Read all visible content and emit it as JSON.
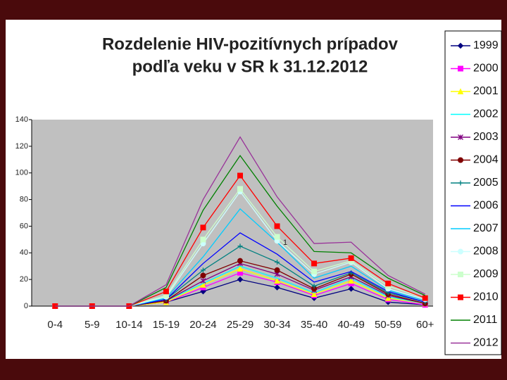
{
  "chart_data": {
    "type": "line",
    "title": [
      "Rozdelenie HIV-pozitívnych prípadov",
      "podľa veku v SR k 31.12.2012"
    ],
    "annotation": "1",
    "categories": [
      "0-4",
      "5-9",
      "10-14",
      "15-19",
      "20-24",
      "25-29",
      "30-34",
      "35-40",
      "40-49",
      "50-59",
      "60+"
    ],
    "ylim": [
      0,
      140
    ],
    "yticks": [
      0,
      20,
      40,
      60,
      80,
      100,
      120,
      140
    ],
    "grid": false,
    "legend": "right",
    "series": [
      {
        "name": "1999",
        "color": "#000080",
        "marker": "diamond",
        "values": [
          0,
          0,
          0,
          3,
          11,
          20,
          14,
          6,
          13,
          3,
          1
        ]
      },
      {
        "name": "2000",
        "color": "#ff00ff",
        "marker": "square",
        "values": [
          0,
          0,
          0,
          3,
          14,
          25,
          18,
          8,
          17,
          5,
          1
        ]
      },
      {
        "name": "2001",
        "color": "#ffff00",
        "marker": "triangle",
        "values": [
          0,
          0,
          0,
          3,
          16,
          28,
          19,
          9,
          19,
          6,
          2
        ]
      },
      {
        "name": "2002",
        "color": "#00ffff",
        "marker": "none",
        "values": [
          0,
          0,
          0,
          4,
          17,
          30,
          21,
          10,
          21,
          7,
          2
        ]
      },
      {
        "name": "2003",
        "color": "#800080",
        "marker": "star",
        "values": [
          0,
          0,
          0,
          4,
          19,
          32,
          24,
          12,
          22,
          8,
          2
        ]
      },
      {
        "name": "2004",
        "color": "#800000",
        "marker": "circle",
        "values": [
          0,
          0,
          0,
          4,
          23,
          34,
          27,
          13,
          24,
          9,
          2
        ]
      },
      {
        "name": "2005",
        "color": "#008080",
        "marker": "plus",
        "values": [
          0,
          0,
          0,
          5,
          27,
          45,
          33,
          15,
          25,
          10,
          3
        ]
      },
      {
        "name": "2006",
        "color": "#0000ff",
        "marker": "none",
        "values": [
          0,
          0,
          0,
          5,
          32,
          55,
          39,
          18,
          26,
          11,
          3
        ]
      },
      {
        "name": "2007",
        "color": "#00ccff",
        "marker": "none",
        "values": [
          0,
          0,
          0,
          6,
          37,
          73,
          48,
          21,
          30,
          12,
          4
        ]
      },
      {
        "name": "2008",
        "color": "#ccffff",
        "marker": "circle",
        "values": [
          0,
          0,
          0,
          7,
          47,
          86,
          49,
          24,
          33,
          13,
          5
        ]
      },
      {
        "name": "2009",
        "color": "#ccffcc",
        "marker": "square",
        "values": [
          0,
          0,
          0,
          8,
          50,
          88,
          52,
          26,
          34,
          15,
          6
        ]
      },
      {
        "name": "2010",
        "color": "#ff0000",
        "marker": "square",
        "values": [
          0,
          0,
          0,
          11,
          59,
          98,
          60,
          32,
          36,
          17,
          6
        ]
      },
      {
        "name": "2011",
        "color": "#008000",
        "marker": "none",
        "values": [
          0,
          0,
          0,
          14,
          72,
          113,
          75,
          41,
          40,
          21,
          8
        ]
      },
      {
        "name": "2012",
        "color": "#993399",
        "marker": "none",
        "values": [
          0,
          0,
          0,
          16,
          80,
          127,
          82,
          47,
          48,
          23,
          9
        ]
      }
    ]
  }
}
